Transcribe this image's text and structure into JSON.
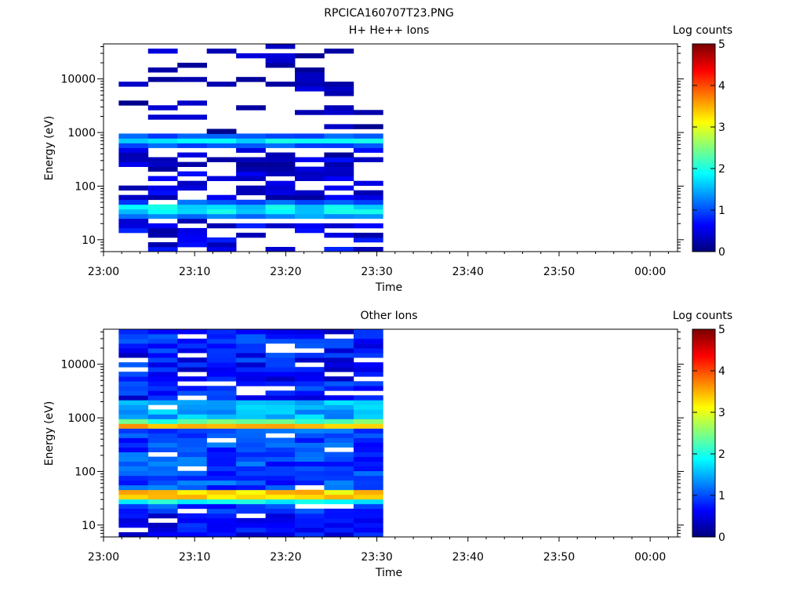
{
  "figure_title": "RPCICA160707T23.PNG",
  "chart_data": [
    {
      "type": "heatmap",
      "title": "H+ He++ Ions",
      "xlabel": "Time",
      "ylabel": "Energy (eV)",
      "y_scale": "log",
      "ylim": [
        6,
        45000
      ],
      "y_tick_values": [
        10,
        100,
        1000,
        10000
      ],
      "y_tick_labels": [
        "10",
        "100",
        "1000",
        "10000"
      ],
      "x_tick_labels": [
        "23:00",
        "23:10",
        "23:20",
        "23:30",
        "23:40",
        "23:50",
        "00:00"
      ],
      "xlim": [
        "23:00",
        "00:03"
      ],
      "data_time_range": [
        "23:01:40",
        "23:30:40"
      ],
      "colorbar": {
        "label": "Log counts",
        "range": [
          0,
          5
        ],
        "tick_labels": [
          "0",
          "1",
          "2",
          "3",
          "4",
          "5"
        ],
        "colormap": "jet"
      },
      "grid": false,
      "seed": 1,
      "bands": [
        {
          "lo": 680,
          "hi": 820,
          "min": 1.6,
          "max": 2.0,
          "p": 1.0
        },
        {
          "lo": 560,
          "hi": 680,
          "min": 0.9,
          "max": 1.3,
          "p": 0.95
        },
        {
          "lo": 820,
          "hi": 950,
          "min": 0.8,
          "max": 1.2,
          "p": 0.9
        },
        {
          "lo": 31,
          "hi": 44,
          "min": 1.5,
          "max": 2.0,
          "p": 1.0
        },
        {
          "lo": 27,
          "hi": 31,
          "min": 1.1,
          "max": 1.5,
          "p": 1.0
        },
        {
          "lo": 44,
          "hi": 55,
          "min": 0.8,
          "max": 1.2,
          "p": 0.95
        },
        {
          "lo": 100,
          "hi": 560,
          "min": 0.1,
          "max": 0.7,
          "p": 0.55
        },
        {
          "lo": 55,
          "hi": 100,
          "min": 0.1,
          "max": 0.7,
          "p": 0.5
        },
        {
          "lo": 950,
          "hi": 45000,
          "min": 0.05,
          "max": 0.5,
          "p": 0.18
        },
        {
          "lo": 6,
          "hi": 27,
          "min": 0.15,
          "max": 0.8,
          "p": 0.5
        }
      ]
    },
    {
      "type": "heatmap",
      "title": "Other Ions",
      "xlabel": "Time",
      "ylabel": "Energy (eV)",
      "y_scale": "log",
      "ylim": [
        6,
        45000
      ],
      "y_tick_values": [
        10,
        100,
        1000,
        10000
      ],
      "y_tick_labels": [
        "10",
        "100",
        "1000",
        "10000"
      ],
      "x_tick_labels": [
        "23:00",
        "23:10",
        "23:20",
        "23:30",
        "23:40",
        "23:50",
        "00:00"
      ],
      "xlim": [
        "23:00",
        "00:03"
      ],
      "data_time_range": [
        "23:01:40",
        "23:30:40"
      ],
      "colorbar": {
        "label": "Log counts",
        "range": [
          0,
          5
        ],
        "tick_labels": [
          "0",
          "1",
          "2",
          "3",
          "4",
          "5"
        ],
        "colormap": "jet"
      },
      "grid": false,
      "seed": 7,
      "bands": [
        {
          "lo": 680,
          "hi": 820,
          "min": 3.1,
          "max": 3.7,
          "p": 1.0
        },
        {
          "lo": 580,
          "hi": 680,
          "min": 2.6,
          "max": 3.1,
          "p": 1.0
        },
        {
          "lo": 820,
          "hi": 1000,
          "min": 2.0,
          "max": 2.6,
          "p": 1.0
        },
        {
          "lo": 32,
          "hi": 42,
          "min": 3.0,
          "max": 3.6,
          "p": 1.0
        },
        {
          "lo": 28,
          "hi": 32,
          "min": 2.4,
          "max": 2.9,
          "p": 1.0
        },
        {
          "lo": 42,
          "hi": 48,
          "min": 2.3,
          "max": 2.8,
          "p": 1.0
        },
        {
          "lo": 24,
          "hi": 28,
          "min": 1.6,
          "max": 2.1,
          "p": 1.0
        },
        {
          "lo": 1000,
          "hi": 2000,
          "min": 1.2,
          "max": 1.8,
          "p": 0.98
        },
        {
          "lo": 48,
          "hi": 580,
          "min": 0.6,
          "max": 1.3,
          "p": 0.9
        },
        {
          "lo": 2000,
          "hi": 45000,
          "min": 0.3,
          "max": 1.1,
          "p": 0.85
        },
        {
          "lo": 16,
          "hi": 24,
          "min": 0.6,
          "max": 1.2,
          "p": 0.9
        },
        {
          "lo": 6,
          "hi": 16,
          "min": 0.3,
          "max": 0.9,
          "p": 0.92
        }
      ]
    }
  ]
}
